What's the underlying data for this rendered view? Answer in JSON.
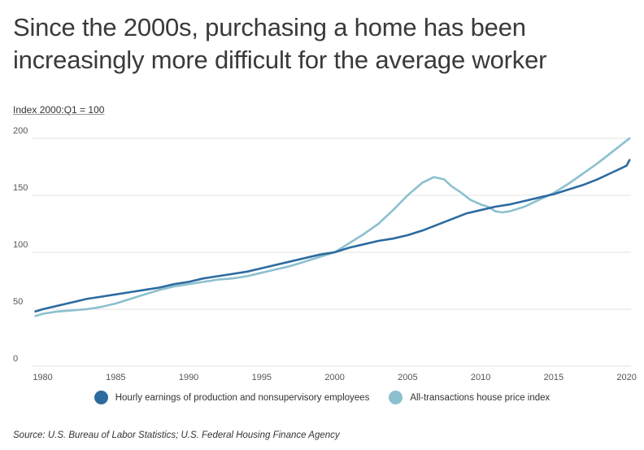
{
  "title": "Since the 2000s, purchasing a home has been increasingly more difficult for the average worker",
  "subtitle": "Index 2000:Q1 = 100",
  "source": "Source: U.S. Bureau of Labor Statistics; U.S. Federal Housing Finance Agency",
  "colors": {
    "earnings": "#2c6ba0",
    "house": "#8cc0cf",
    "grid": "#e3e3e3",
    "tick": "#555555"
  },
  "chart_data": {
    "type": "line",
    "xlim": [
      1979.3,
      2020.3
    ],
    "ylim": [
      0,
      200
    ],
    "x_ticks": [
      1980,
      1985,
      1990,
      1995,
      2000,
      2005,
      2010,
      2015,
      2020
    ],
    "y_ticks": [
      0,
      50,
      100,
      150,
      200
    ],
    "grid": true,
    "legend_position": "bottom",
    "series": [
      {
        "name": "Hourly earnings of production and nonsupervisory employees",
        "color": "#2c6ba0",
        "points": [
          [
            1979.5,
            48
          ],
          [
            1980,
            50
          ],
          [
            1981,
            53
          ],
          [
            1982,
            56
          ],
          [
            1983,
            59
          ],
          [
            1984,
            61
          ],
          [
            1985,
            63
          ],
          [
            1986,
            65
          ],
          [
            1987,
            67
          ],
          [
            1988,
            69
          ],
          [
            1989,
            72
          ],
          [
            1990,
            74
          ],
          [
            1991,
            77
          ],
          [
            1992,
            79
          ],
          [
            1993,
            81
          ],
          [
            1994,
            83
          ],
          [
            1995,
            86
          ],
          [
            1996,
            89
          ],
          [
            1997,
            92
          ],
          [
            1998,
            95
          ],
          [
            1999,
            98
          ],
          [
            2000,
            100
          ],
          [
            2001,
            104
          ],
          [
            2002,
            107
          ],
          [
            2003,
            110
          ],
          [
            2004,
            112
          ],
          [
            2005,
            115
          ],
          [
            2006,
            119
          ],
          [
            2007,
            124
          ],
          [
            2008,
            129
          ],
          [
            2009,
            134
          ],
          [
            2010,
            137
          ],
          [
            2011,
            140
          ],
          [
            2012,
            142
          ],
          [
            2013,
            145
          ],
          [
            2014,
            148
          ],
          [
            2015,
            151
          ],
          [
            2016,
            155
          ],
          [
            2017,
            159
          ],
          [
            2018,
            164
          ],
          [
            2019,
            170
          ],
          [
            2020,
            176
          ],
          [
            2020.2,
            181
          ]
        ]
      },
      {
        "name": "All-transactions house price index",
        "color": "#8cc0cf",
        "points": [
          [
            1979.5,
            44
          ],
          [
            1980,
            46
          ],
          [
            1981,
            48
          ],
          [
            1982,
            49
          ],
          [
            1983,
            50
          ],
          [
            1984,
            52
          ],
          [
            1985,
            55
          ],
          [
            1986,
            59
          ],
          [
            1987,
            63
          ],
          [
            1988,
            67
          ],
          [
            1989,
            70
          ],
          [
            1990,
            72
          ],
          [
            1991,
            74
          ],
          [
            1992,
            76
          ],
          [
            1993,
            77
          ],
          [
            1994,
            79
          ],
          [
            1995,
            82
          ],
          [
            1996,
            85
          ],
          [
            1997,
            88
          ],
          [
            1998,
            92
          ],
          [
            1999,
            96
          ],
          [
            2000,
            100
          ],
          [
            2001,
            108
          ],
          [
            2002,
            116
          ],
          [
            2003,
            125
          ],
          [
            2004,
            137
          ],
          [
            2005,
            150
          ],
          [
            2006,
            161
          ],
          [
            2006.8,
            166
          ],
          [
            2007.5,
            164
          ],
          [
            2008,
            158
          ],
          [
            2008.7,
            152
          ],
          [
            2009.3,
            146
          ],
          [
            2010,
            142
          ],
          [
            2010.5,
            140
          ],
          [
            2011,
            136
          ],
          [
            2011.5,
            135
          ],
          [
            2012,
            136
          ],
          [
            2013,
            140
          ],
          [
            2014,
            146
          ],
          [
            2015,
            152
          ],
          [
            2016,
            160
          ],
          [
            2017,
            169
          ],
          [
            2018,
            178
          ],
          [
            2019,
            188
          ],
          [
            2020,
            198
          ],
          [
            2020.2,
            200
          ]
        ]
      }
    ]
  }
}
